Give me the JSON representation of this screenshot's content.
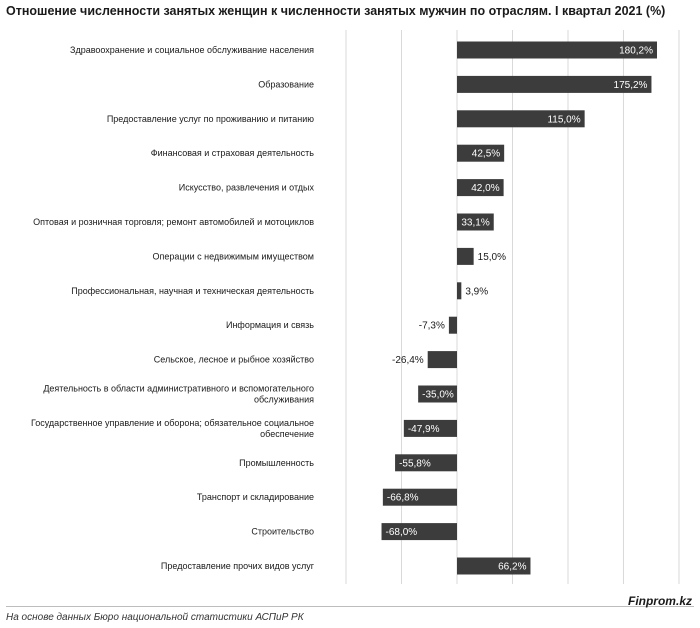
{
  "chart_data": {
    "type": "bar",
    "orientation": "horizontal",
    "title": "Отношение численности занятых женщин к численности занятых мужчин по отраслям. I квартал 2021 (%)",
    "categories": [
      "Здравоохранение и социальное обслуживание населения",
      "Образование",
      "Предоставление услуг по проживанию и питанию",
      "Финансовая и страховая деятельность",
      "Искусство, развлечения и отдых",
      "Оптовая и розничная торговля; ремонт автомобилей и мотоциклов",
      "Операции с недвижимым имуществом",
      "Профессиональная, научная и техническая деятельность",
      "Информация и связь",
      "Сельское, лесное и рыбное хозяйство",
      "Деятельность в области административного и вспомогательного обслуживания",
      "Государственное управление и оборона; обязательное социальное обеспечение",
      "Промышленность",
      "Транспорт и складирование",
      "Строительство",
      "Предоставление прочих видов услуг"
    ],
    "values": [
      180.2,
      175.2,
      115.0,
      42.5,
      42.0,
      33.1,
      15.0,
      3.9,
      -7.3,
      -26.4,
      -35.0,
      -47.9,
      -55.8,
      -66.8,
      -68.0,
      66.2
    ],
    "value_labels": [
      "180,2%",
      "175,2%",
      "115,0%",
      "42,5%",
      "42,0%",
      "33,1%",
      "15,0%",
      "3,9%",
      "-7,3%",
      "-26,4%",
      "-35,0%",
      "-47,9%",
      "-55,8%",
      "-66,8%",
      "-68,0%",
      "66,2%"
    ],
    "xlim": [
      -100,
      200
    ],
    "grid": true,
    "bar_color": "#3c3c3c",
    "label_inside_color": "#ffffff",
    "label_outside_color": "#1a1a1a"
  },
  "footer": {
    "source": "На основе данных Бюро национальной статистики АСПиР РК",
    "brand": "Finprom.kz"
  }
}
